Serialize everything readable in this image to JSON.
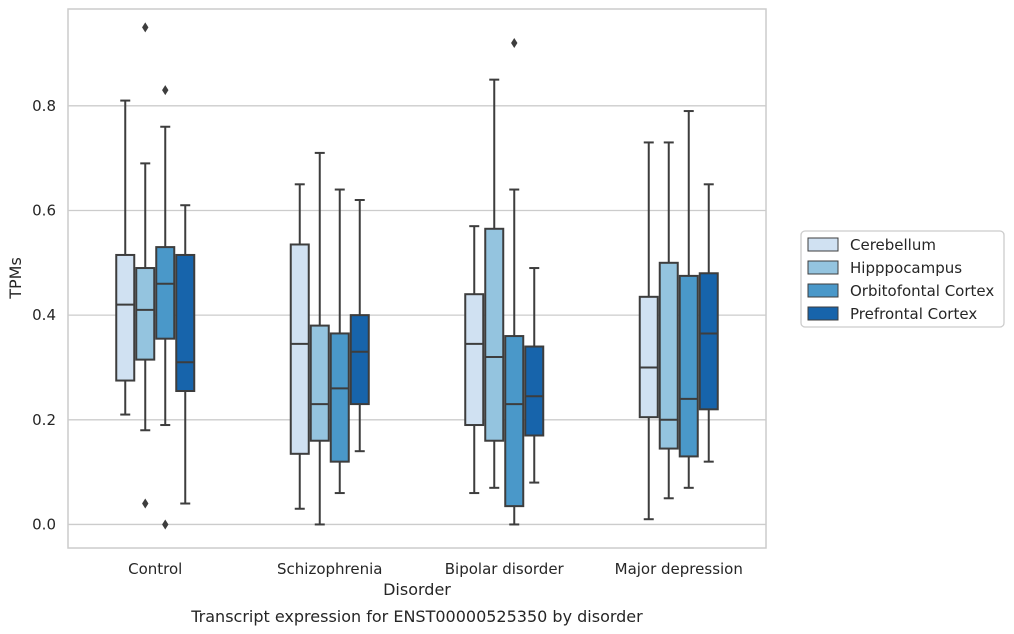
{
  "chart_data": {
    "type": "box",
    "xlabel": "Disorder",
    "ylabel": "TPMs",
    "caption": "Transcript expression for ENST00000525350 by disorder",
    "ylim": [
      -0.045,
      0.985
    ],
    "yticks": [
      0.0,
      0.2,
      0.4,
      0.6,
      0.8
    ],
    "ytick_labels": [
      "0.0",
      "0.2",
      "0.4",
      "0.6",
      "0.8"
    ],
    "grid": "horizontal",
    "legend_position": "right",
    "categories": [
      "Control",
      "Schizophrenia",
      "Bipolar disorder",
      "Major depression"
    ],
    "series": [
      {
        "name": "Cerebellum",
        "color": "#d0e1f2",
        "boxes": [
          {
            "min": 0.21,
            "q1": 0.275,
            "median": 0.42,
            "q3": 0.515,
            "max": 0.81,
            "outliers": []
          },
          {
            "min": 0.03,
            "q1": 0.135,
            "median": 0.345,
            "q3": 0.535,
            "max": 0.65,
            "outliers": []
          },
          {
            "min": 0.06,
            "q1": 0.19,
            "median": 0.345,
            "q3": 0.44,
            "max": 0.57,
            "outliers": []
          },
          {
            "min": 0.01,
            "q1": 0.205,
            "median": 0.3,
            "q3": 0.435,
            "max": 0.73,
            "outliers": []
          }
        ]
      },
      {
        "name": "Hipppocampus",
        "color": "#94c4df",
        "boxes": [
          {
            "min": 0.18,
            "q1": 0.315,
            "median": 0.41,
            "q3": 0.49,
            "max": 0.69,
            "outliers": [
              0.95,
              0.04
            ]
          },
          {
            "min": 0.0,
            "q1": 0.16,
            "median": 0.23,
            "q3": 0.38,
            "max": 0.71,
            "outliers": []
          },
          {
            "min": 0.07,
            "q1": 0.16,
            "median": 0.32,
            "q3": 0.565,
            "max": 0.85,
            "outliers": []
          },
          {
            "min": 0.05,
            "q1": 0.145,
            "median": 0.2,
            "q3": 0.5,
            "max": 0.73,
            "outliers": []
          }
        ]
      },
      {
        "name": "Orbitofontal Cortex",
        "color": "#4a98c9",
        "boxes": [
          {
            "min": 0.19,
            "q1": 0.355,
            "median": 0.46,
            "q3": 0.53,
            "max": 0.76,
            "outliers": [
              0.83,
              0.0
            ]
          },
          {
            "min": 0.06,
            "q1": 0.12,
            "median": 0.26,
            "q3": 0.365,
            "max": 0.64,
            "outliers": []
          },
          {
            "min": 0.0,
            "q1": 0.035,
            "median": 0.23,
            "q3": 0.36,
            "max": 0.64,
            "outliers": [
              0.92
            ]
          },
          {
            "min": 0.07,
            "q1": 0.13,
            "median": 0.24,
            "q3": 0.475,
            "max": 0.79,
            "outliers": []
          }
        ]
      },
      {
        "name": "Prefrontal Cortex",
        "color": "#1764ab",
        "boxes": [
          {
            "min": 0.04,
            "q1": 0.255,
            "median": 0.31,
            "q3": 0.515,
            "max": 0.61,
            "outliers": []
          },
          {
            "min": 0.14,
            "q1": 0.23,
            "median": 0.33,
            "q3": 0.4,
            "max": 0.62,
            "outliers": []
          },
          {
            "min": 0.08,
            "q1": 0.17,
            "median": 0.245,
            "q3": 0.34,
            "max": 0.49,
            "outliers": []
          },
          {
            "min": 0.12,
            "q1": 0.22,
            "median": 0.365,
            "q3": 0.48,
            "max": 0.65,
            "outliers": []
          }
        ]
      }
    ]
  }
}
